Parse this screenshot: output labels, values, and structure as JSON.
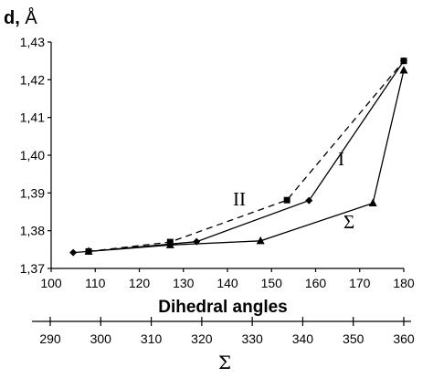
{
  "chart_data": {
    "type": "line",
    "y_title_bold": "d,",
    "y_title_unit": "Å",
    "xlabel": "Dihedral angles",
    "x2label": "Σ",
    "xlim": [
      100,
      180
    ],
    "ylim": [
      1.37,
      1.43
    ],
    "x_ticks": [
      "100",
      "110",
      "120",
      "130",
      "140",
      "150",
      "160",
      "170",
      "180"
    ],
    "y_ticks": [
      "1,37",
      "1,38",
      "1,39",
      "1,40",
      "1,41",
      "1,42",
      "1,43"
    ],
    "x2lim": [
      290,
      360
    ],
    "x2_ticks": [
      "290",
      "300",
      "310",
      "320",
      "330",
      "340",
      "350",
      "360"
    ],
    "grid": false,
    "series": [
      {
        "name": "I",
        "marker": "diamond",
        "dash": "solid",
        "x": [
          105,
          108.5,
          133,
          158.5,
          180
        ],
        "y": [
          1.3742,
          1.3745,
          1.3771,
          1.388,
          1.425
        ]
      },
      {
        "name": "II",
        "marker": "square",
        "dash": "dashed",
        "x": [
          108.5,
          127,
          153.5,
          180
        ],
        "y": [
          1.3745,
          1.377,
          1.3881,
          1.425
        ]
      },
      {
        "name": "Σ",
        "marker": "triangle",
        "dash": "solid",
        "x": [
          108.5,
          127,
          147.5,
          173,
          180
        ],
        "y": [
          1.3745,
          1.3762,
          1.3773,
          1.3873,
          1.4225
        ]
      }
    ],
    "annotations": [
      "I",
      "II",
      "Σ"
    ]
  }
}
